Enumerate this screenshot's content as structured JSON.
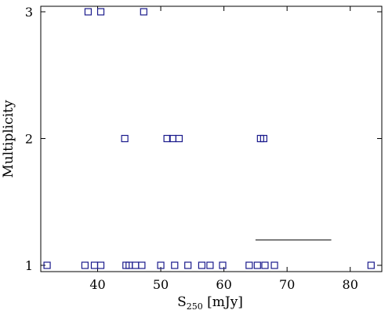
{
  "chart_data": {
    "type": "scatter",
    "title": "",
    "xlabel_main": "S",
    "xlabel_sub": "250",
    "xlabel_unit": " [mJy]",
    "ylabel": "Multiplicity",
    "xlim": [
      31,
      85
    ],
    "ylim": [
      1,
      3
    ],
    "x_ticks": [
      40,
      50,
      60,
      70,
      80
    ],
    "y_ticks": [
      1,
      2,
      3
    ],
    "grid": false,
    "marker": "open-square",
    "marker_color": "#1a1a8c",
    "series": [
      {
        "points": [
          {
            "x": 32.0,
            "y": 1
          },
          {
            "x": 38.0,
            "y": 1
          },
          {
            "x": 39.5,
            "y": 1
          },
          {
            "x": 40.5,
            "y": 1
          },
          {
            "x": 44.5,
            "y": 1
          },
          {
            "x": 45.0,
            "y": 1
          },
          {
            "x": 46.0,
            "y": 1
          },
          {
            "x": 47.0,
            "y": 1
          },
          {
            "x": 50.0,
            "y": 1
          },
          {
            "x": 52.2,
            "y": 1
          },
          {
            "x": 54.3,
            "y": 1
          },
          {
            "x": 56.5,
            "y": 1
          },
          {
            "x": 57.8,
            "y": 1
          },
          {
            "x": 59.8,
            "y": 1
          },
          {
            "x": 64.0,
            "y": 1
          },
          {
            "x": 65.3,
            "y": 1
          },
          {
            "x": 66.5,
            "y": 1
          },
          {
            "x": 68.0,
            "y": 1
          },
          {
            "x": 83.3,
            "y": 1
          },
          {
            "x": 44.3,
            "y": 2
          },
          {
            "x": 51.0,
            "y": 2
          },
          {
            "x": 51.9,
            "y": 2
          },
          {
            "x": 52.9,
            "y": 2
          },
          {
            "x": 65.8,
            "y": 2
          },
          {
            "x": 66.3,
            "y": 2
          },
          {
            "x": 38.5,
            "y": 3
          },
          {
            "x": 40.5,
            "y": 3
          },
          {
            "x": 47.3,
            "y": 3
          }
        ]
      }
    ],
    "annotation_line": {
      "x": [
        65,
        77
      ],
      "y": 1.2
    }
  }
}
